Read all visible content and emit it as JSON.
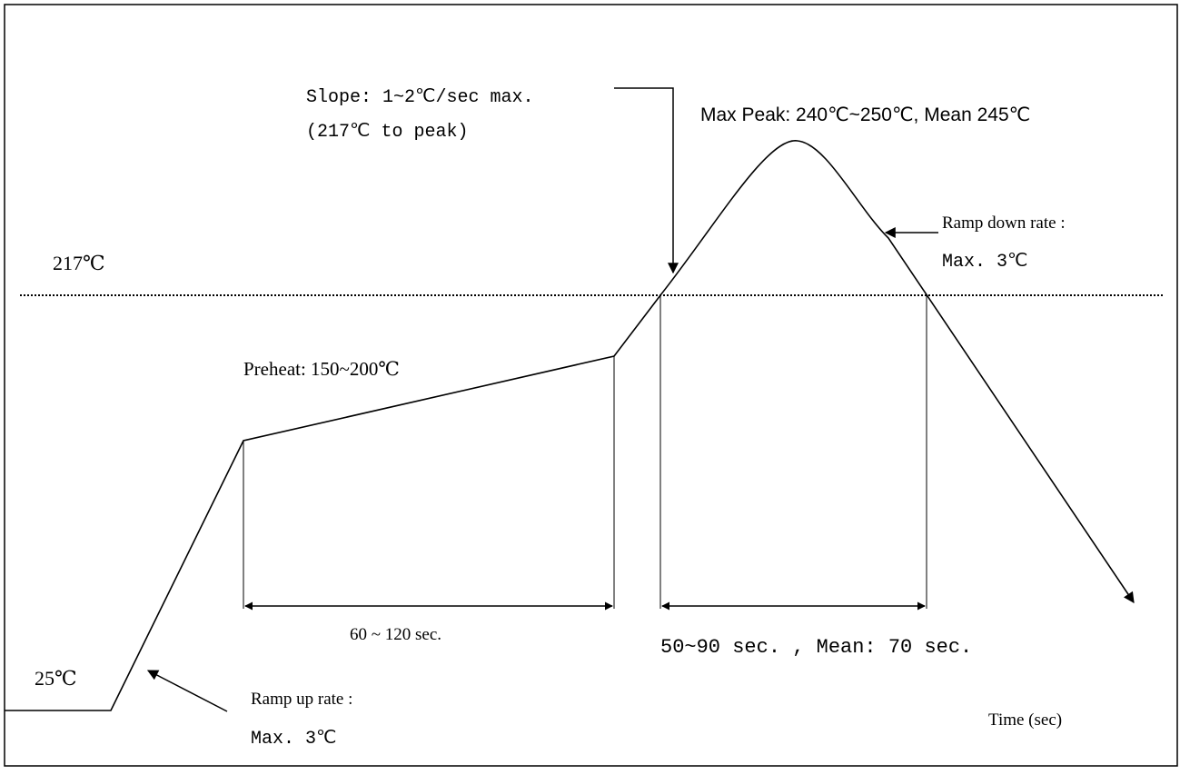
{
  "labels": {
    "temp_217": "217℃",
    "temp_25": "25℃",
    "slope_line1": "Slope: 1~2℃/sec max.",
    "slope_line2": "(217℃ to peak)",
    "max_peak": "Max Peak: 240℃~250℃, Mean 245℃",
    "ramp_down_line1": "Ramp down rate :",
    "ramp_down_line2": "Max. 3℃",
    "preheat": "Preheat: 150~200℃",
    "preheat_duration": "60 ~ 120 sec.",
    "reflow_duration": "50~90 sec.  , Mean: 70 sec.",
    "ramp_up_line1": "Ramp up rate :",
    "ramp_up_line2": "Max. 3℃",
    "time_axis": "Time (sec)"
  },
  "colors": {
    "line": "#000000",
    "frame": "#000000",
    "background": "#ffffff"
  }
}
